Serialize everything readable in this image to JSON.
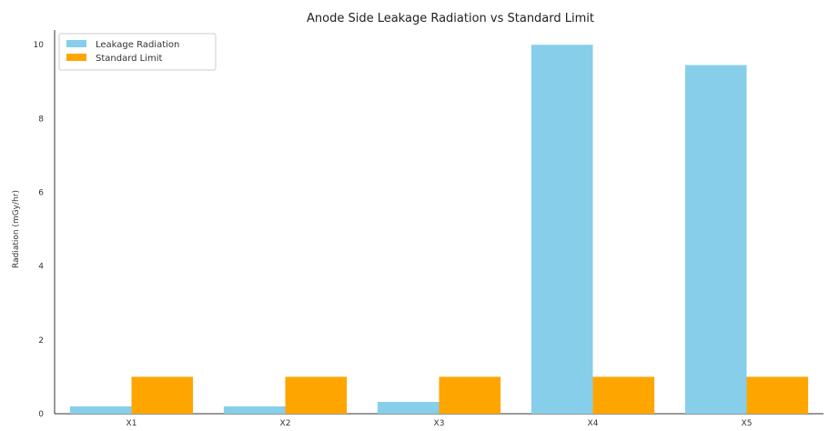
{
  "chart_data": {
    "type": "bar",
    "title": "Anode Side Leakage Radiation vs Standard Limit",
    "xlabel": "",
    "ylabel": "Radiation (mGy/hr)",
    "categories": [
      "X1",
      "X2",
      "X3",
      "X4",
      "X5"
    ],
    "series": [
      {
        "name": "Leakage Radiation",
        "color": "#87CEEB",
        "values": [
          0.2,
          0.2,
          0.32,
          10.0,
          9.45
        ]
      },
      {
        "name": "Standard Limit",
        "color": "#FFA500",
        "values": [
          1.0,
          1.0,
          1.0,
          1.0,
          1.0
        ]
      }
    ],
    "ylim": [
      0,
      10.4
    ],
    "yticks": [
      0,
      2,
      4,
      6,
      8,
      10
    ],
    "grid": false,
    "legend_position": "top-left"
  }
}
